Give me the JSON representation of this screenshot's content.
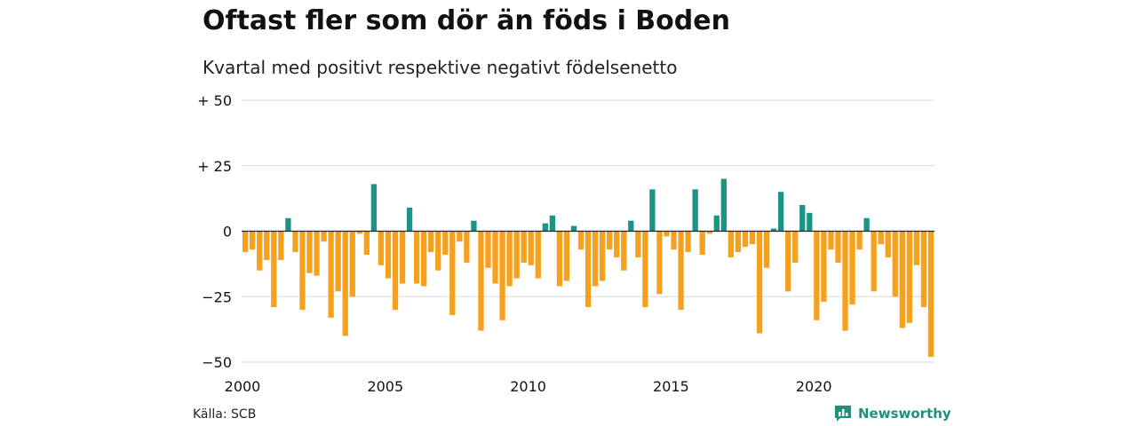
{
  "header": {
    "title": "Oftast fler som dör än föds i Boden",
    "subtitle": "Kvartal med positivt respektive negativt födelsenetto"
  },
  "footer": {
    "source": "Källa: SCB",
    "brand": "Newsworthy",
    "brand_icon": "bar-chart-speech-bubble-icon"
  },
  "colors": {
    "positive": "#1a9484",
    "negative": "#f5a11d",
    "grid": "#d9d9d9",
    "zero_line": "#222222",
    "brand": "#1f8f7e"
  },
  "chart_data": {
    "type": "bar",
    "title": "Oftast fler som dör än föds i Boden",
    "subtitle": "Kvartal med positivt respektive negativt födelsenetto",
    "xlabel": "",
    "ylabel": "",
    "x_start": "2000 Q1",
    "x_tick_labels": [
      "2000",
      "2005",
      "2010",
      "2015",
      "2020"
    ],
    "y_tick_values": [
      50,
      25,
      0,
      -25,
      -50
    ],
    "y_tick_labels": [
      "+ 50",
      "+ 25",
      "0",
      "−25",
      "−50"
    ],
    "ylim": [
      -50,
      50
    ],
    "grid": true,
    "legend": "none",
    "values": [
      -8,
      -7,
      -15,
      -11,
      -29,
      -11,
      5,
      -8,
      -30,
      -16,
      -17,
      -4,
      -33,
      -23,
      -40,
      -25,
      -1,
      -9,
      18,
      -13,
      -18,
      -30,
      -20,
      9,
      -20,
      -21,
      -8,
      -15,
      -9,
      -32,
      -4,
      -12,
      4,
      -38,
      -14,
      -20,
      -34,
      -21,
      -18,
      -12,
      -13,
      -18,
      3,
      6,
      -21,
      -19,
      2,
      -7,
      -29,
      -21,
      -19,
      -7,
      -10,
      -15,
      4,
      -10,
      -29,
      16,
      -24,
      -2,
      -7,
      -30,
      -8,
      16,
      -9,
      -1,
      6,
      20,
      -10,
      -8,
      -6,
      -5,
      -39,
      -14,
      1,
      15,
      -23,
      -12,
      10,
      7,
      -34,
      -27,
      -7,
      -12,
      -38,
      -28,
      -7,
      5,
      -23,
      -5,
      -10,
      -25,
      -37,
      -35,
      -13,
      -29,
      -48
    ]
  }
}
